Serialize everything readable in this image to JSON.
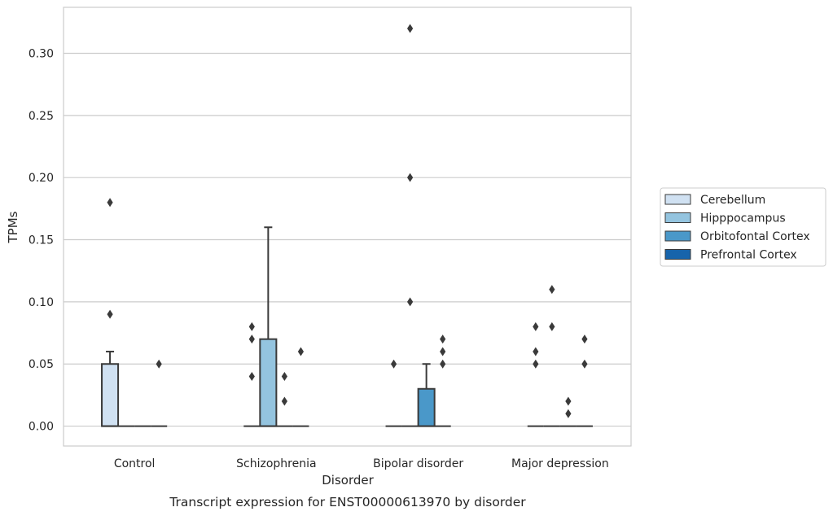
{
  "chart_data": {
    "type": "box",
    "xlabel": "Disorder",
    "ylabel": "TPMs",
    "caption": "Transcript expression for ENST00000613970 by disorder",
    "categories": [
      "Control",
      "Schizophrenia",
      "Bipolar disorder",
      "Major depression"
    ],
    "ylim": [
      -0.016,
      0.337
    ],
    "yticks": [
      "0.00",
      "0.05",
      "0.10",
      "0.15",
      "0.20",
      "0.25",
      "0.30"
    ],
    "ytick_values": [
      0,
      0.05,
      0.1,
      0.15,
      0.2,
      0.25,
      0.3
    ],
    "grid": "horizontal",
    "legend_position": "right",
    "series": [
      {
        "name": "Cerebellum",
        "color": "#d0e1f2",
        "boxes": [
          {
            "q1": 0,
            "median": 0,
            "q3": 0.05,
            "whisker_low": 0,
            "whisker_high": 0.06,
            "outliers": [
              0.09,
              0.18
            ]
          },
          {
            "q1": 0,
            "median": 0,
            "q3": 0,
            "whisker_low": 0,
            "whisker_high": 0,
            "outliers": [
              0.04,
              0.07,
              0.08
            ]
          },
          {
            "q1": 0,
            "median": 0,
            "q3": 0,
            "whisker_low": 0,
            "whisker_high": 0,
            "outliers": [
              0.05
            ]
          },
          {
            "q1": 0,
            "median": 0,
            "q3": 0,
            "whisker_low": 0,
            "whisker_high": 0,
            "outliers": [
              0.05,
              0.06,
              0.08
            ]
          }
        ]
      },
      {
        "name": "Hipppocampus",
        "color": "#94c4df",
        "boxes": [
          {
            "q1": 0,
            "median": 0,
            "q3": 0,
            "whisker_low": 0,
            "whisker_high": 0,
            "outliers": []
          },
          {
            "q1": 0,
            "median": 0,
            "q3": 0.07,
            "whisker_low": 0,
            "whisker_high": 0.16,
            "outliers": []
          },
          {
            "q1": 0,
            "median": 0,
            "q3": 0,
            "whisker_low": 0,
            "whisker_high": 0,
            "outliers": [
              0.1,
              0.2,
              0.32
            ]
          },
          {
            "q1": 0,
            "median": 0,
            "q3": 0,
            "whisker_low": 0,
            "whisker_high": 0,
            "outliers": [
              0.08,
              0.11
            ]
          }
        ]
      },
      {
        "name": "Orbitofontal Cortex",
        "color": "#4a98c9",
        "boxes": [
          {
            "q1": 0,
            "median": 0,
            "q3": 0,
            "whisker_low": 0,
            "whisker_high": 0,
            "outliers": []
          },
          {
            "q1": 0,
            "median": 0,
            "q3": 0,
            "whisker_low": 0,
            "whisker_high": 0,
            "outliers": [
              0.02,
              0.04
            ]
          },
          {
            "q1": 0,
            "median": 0,
            "q3": 0.03,
            "whisker_low": 0,
            "whisker_high": 0.05,
            "outliers": []
          },
          {
            "q1": 0,
            "median": 0,
            "q3": 0,
            "whisker_low": 0,
            "whisker_high": 0,
            "outliers": [
              0.01,
              0.02
            ]
          }
        ]
      },
      {
        "name": "Prefrontal Cortex",
        "color": "#1764ab",
        "boxes": [
          {
            "q1": 0,
            "median": 0,
            "q3": 0,
            "whisker_low": 0,
            "whisker_high": 0,
            "outliers": [
              0.05
            ]
          },
          {
            "q1": 0,
            "median": 0,
            "q3": 0,
            "whisker_low": 0,
            "whisker_high": 0,
            "outliers": [
              0.06
            ]
          },
          {
            "q1": 0,
            "median": 0,
            "q3": 0,
            "whisker_low": 0,
            "whisker_high": 0,
            "outliers": [
              0.05,
              0.06,
              0.07
            ]
          },
          {
            "q1": 0,
            "median": 0,
            "q3": 0,
            "whisker_low": 0,
            "whisker_high": 0,
            "outliers": [
              0.05,
              0.07
            ]
          }
        ]
      }
    ]
  }
}
